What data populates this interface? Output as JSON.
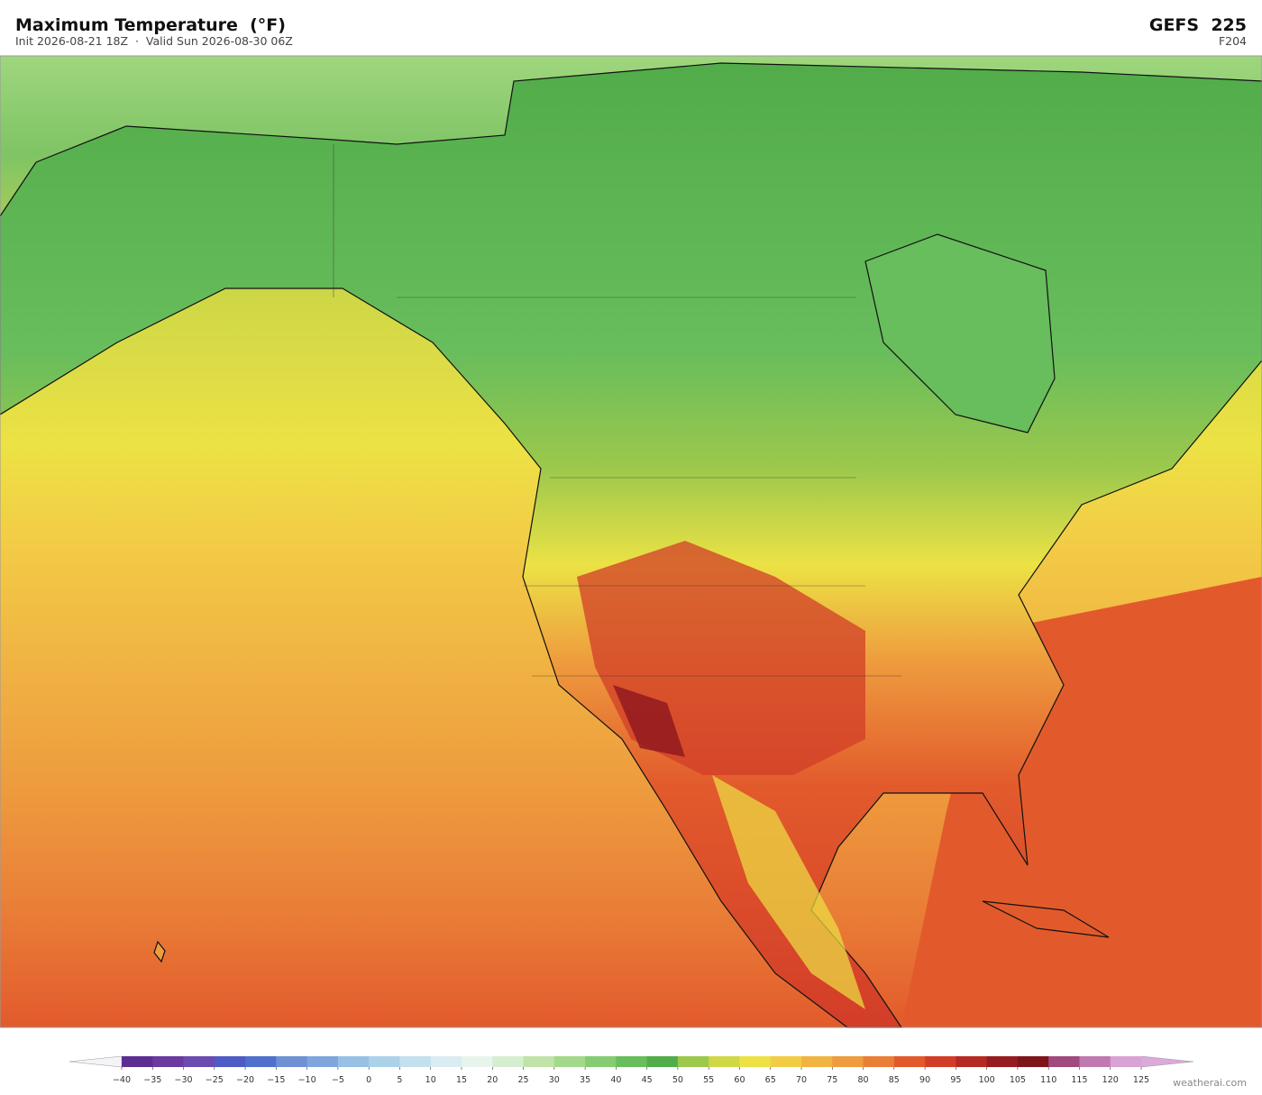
{
  "header": {
    "title": "Maximum Temperature  (°F)",
    "subtitle": "Init 2026-08-21 18Z  ·  Valid Sun 2026-08-30 06Z",
    "model": "GEFS  225",
    "forecast_hour": "F204"
  },
  "colorbar": {
    "ticks": [
      {
        "value": -40,
        "label": "−40"
      },
      {
        "value": -35,
        "label": "−35"
      },
      {
        "value": -30,
        "label": "−30"
      },
      {
        "value": -25,
        "label": "−25"
      },
      {
        "value": -20,
        "label": "−20"
      },
      {
        "value": -15,
        "label": "−15"
      },
      {
        "value": -10,
        "label": "−10"
      },
      {
        "value": -5,
        "label": "−5"
      },
      0,
      5,
      10,
      15,
      20,
      25,
      30,
      35,
      40,
      45,
      50,
      55,
      60,
      65,
      70,
      75,
      80,
      85,
      90,
      95,
      100,
      105,
      110,
      115,
      120,
      125
    ],
    "colors": [
      "#5e2d91",
      "#6a3a9e",
      "#6b4bb0",
      "#4f5bc4",
      "#5070cc",
      "#6f91d4",
      "#7fa6dc",
      "#98c0e4",
      "#acd2ea",
      "#c3e0ee",
      "#d9ecf2",
      "#e8f5ec",
      "#d6eed0",
      "#bfe3a8",
      "#a3d98a",
      "#86cc72",
      "#68bd5c",
      "#52ac4a",
      "#9cc84c",
      "#cfd746",
      "#ece245",
      "#f3cc46",
      "#f0b443",
      "#ee9c3e",
      "#e97e37",
      "#e25a2c",
      "#d23d28",
      "#b52a23",
      "#961c1f",
      "#7d1519",
      "#a04a7e",
      "#c079b0",
      "#d8a2d4"
    ],
    "under_color": "#f4f4f8",
    "over_color": "#dca9db"
  },
  "footer": {
    "credit": "weatherai.com"
  }
}
